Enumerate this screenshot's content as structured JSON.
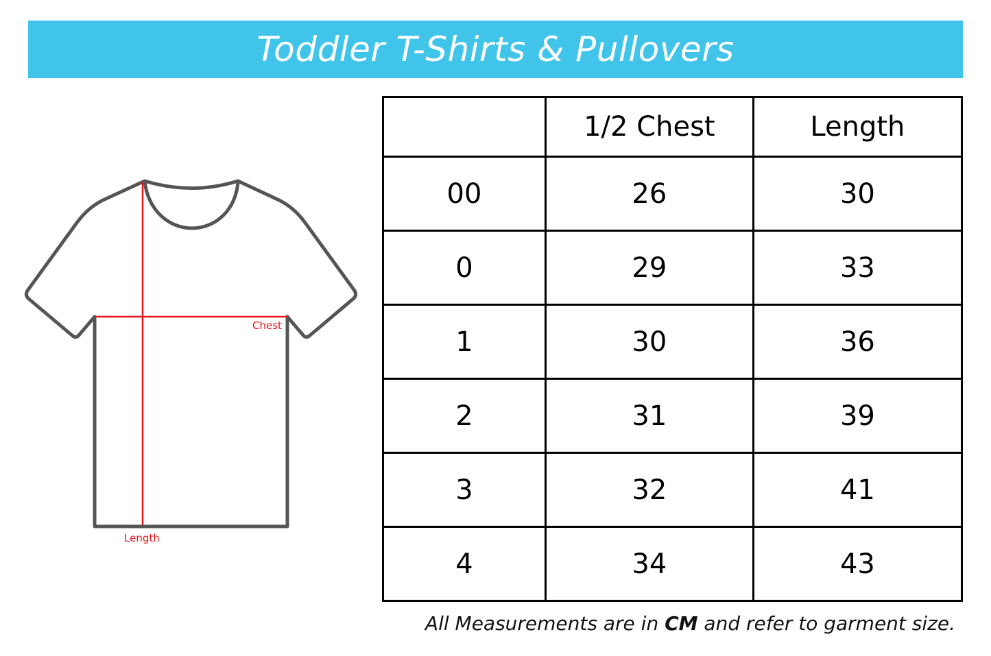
{
  "title": "Toddler T-Shirts & Pullovers",
  "diagram": {
    "chest_label": "Chest",
    "length_label": "Length",
    "outline_color": "#555555",
    "measure_color": "#e8141c"
  },
  "table": {
    "headers": [
      "",
      "1/2 Chest",
      "Length"
    ],
    "rows": [
      [
        "00",
        "26",
        "30"
      ],
      [
        "0",
        "29",
        "33"
      ],
      [
        "1",
        "30",
        "36"
      ],
      [
        "2",
        "31",
        "39"
      ],
      [
        "3",
        "32",
        "41"
      ],
      [
        "4",
        "34",
        "43"
      ]
    ]
  },
  "footnote": {
    "before": "All Measurements are in ",
    "unit": "CM",
    "after": " and refer to garment size."
  },
  "colors": {
    "banner": "#40c4ea"
  }
}
